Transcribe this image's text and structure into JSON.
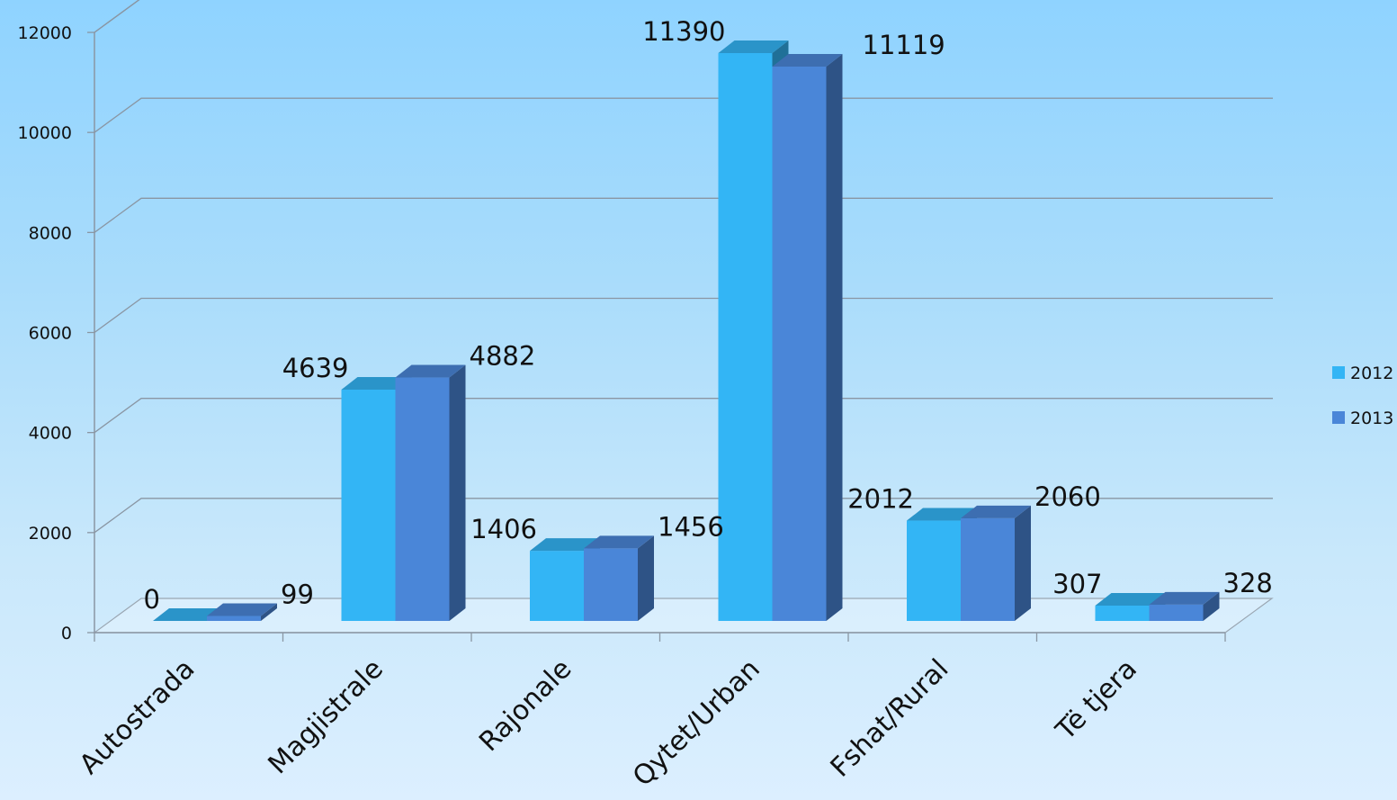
{
  "chart_data": {
    "type": "bar",
    "style": "3d-clustered-column",
    "categories": [
      "Autostrada",
      "Magjistrale",
      "Rajonale",
      "Qytet/Urban",
      "Fshat/Rural",
      "Të tjera"
    ],
    "series": [
      {
        "name": "2012",
        "values": [
          0,
          4639,
          1406,
          11390,
          2012,
          307
        ],
        "color": "#33b5f5"
      },
      {
        "name": "2013",
        "values": [
          99,
          4882,
          1456,
          11119,
          2060,
          328
        ],
        "color": "#4a86d8"
      }
    ],
    "data_labels": [
      [
        "0",
        "4639",
        "1406",
        "11390",
        "2012",
        "307"
      ],
      [
        "99",
        "4882",
        "1456",
        "11119",
        "2060",
        "328"
      ]
    ],
    "y_ticks": [
      0,
      2000,
      4000,
      6000,
      8000,
      10000,
      12000
    ],
    "ylim": [
      0,
      12000
    ],
    "grid": true,
    "legend": "right"
  }
}
